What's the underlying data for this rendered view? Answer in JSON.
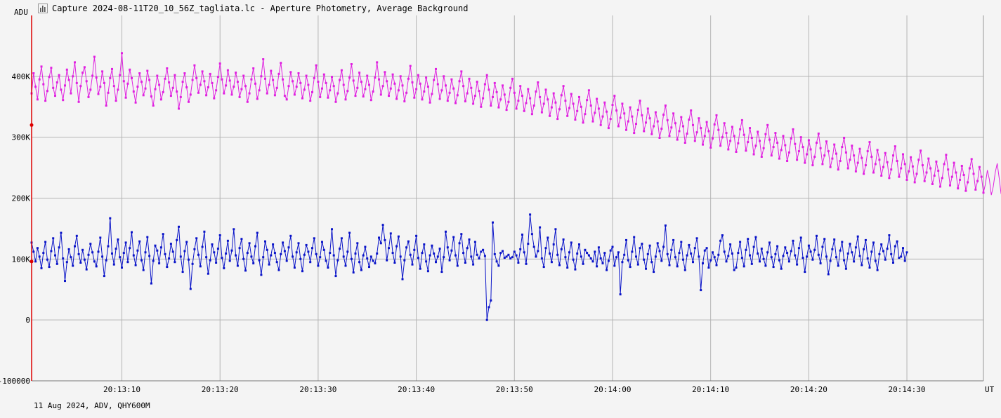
{
  "window": {
    "title": "Capture 2024-08-11T20_10_56Z_tagliata.lc - Aperture Photometry, Average Background",
    "icon": "lightcurve-app-icon"
  },
  "footer": {
    "text": "11 Aug 2024, ADV, QHY600M"
  },
  "colors": {
    "background": "#f4f4f4",
    "grid": "#b4b4b4",
    "axis": "#777777",
    "cursor": "#dd0000",
    "series1": "#e020e0",
    "series2": "#0a14c8"
  },
  "chart_data": {
    "type": "line",
    "title": "",
    "xlabel": "UT",
    "ylabel": "ADU",
    "x_range": [
      "20:13:00.8",
      "20:14:37.8"
    ],
    "ylim": [
      -100000,
      500000
    ],
    "y_ticks": [
      {
        "value": -100000,
        "label": "-100000"
      },
      {
        "value": 0,
        "label": "0"
      },
      {
        "value": 100000,
        "label": "100K"
      },
      {
        "value": 200000,
        "label": "200K"
      },
      {
        "value": 300000,
        "label": "300K"
      },
      {
        "value": 400000,
        "label": "400K"
      }
    ],
    "x_ticks": [
      {
        "value": "20:13:10",
        "label": "20:13:10"
      },
      {
        "value": "20:13:20",
        "label": "20:13:20"
      },
      {
        "value": "20:13:30",
        "label": "20:13:30"
      },
      {
        "value": "20:13:40",
        "label": "20:13:40"
      },
      {
        "value": "20:13:50",
        "label": "20:13:50"
      },
      {
        "value": "20:14:00",
        "label": "20:14:00"
      },
      {
        "value": "20:14:10",
        "label": "20:14:10"
      },
      {
        "value": "20:14:20",
        "label": "20:14:20"
      },
      {
        "value": "20:14:30",
        "label": "20:14:30"
      }
    ],
    "grid": true,
    "cursor": {
      "time": "20:13:00.8",
      "series1_value": 320000,
      "series2_value": 96000
    },
    "time_step_s": 0.2,
    "series": [
      {
        "color": "#e020e0",
        "values": [
          372000,
          405000,
          383000,
          362000,
          395000,
          416000,
          387000,
          360000,
          376000,
          399000,
          414000,
          381000,
          368000,
          390000,
          402000,
          378000,
          361000,
          385000,
          411000,
          394000,
          372000,
          400000,
          423000,
          389000,
          358000,
          384000,
          406000,
          415000,
          392000,
          366000,
          378000,
          401000,
          432000,
          398000,
          371000,
          383000,
          408000,
          389000,
          352000,
          373000,
          397000,
          412000,
          384000,
          360000,
          378000,
          402000,
          438000,
          392000,
          365000,
          388000,
          411000,
          397000,
          375000,
          357000,
          383000,
          405000,
          391000,
          369000,
          380000,
          409000,
          394000,
          367000,
          352000,
          379000,
          401000,
          386000,
          362000,
          374000,
          396000,
          413000,
          390000,
          368000,
          381000,
          402000,
          375000,
          347000,
          366000,
          391000,
          405000,
          382000,
          358000,
          370000,
          394000,
          418000,
          397000,
          373000,
          386000,
          408000,
          392000,
          369000,
          382000,
          404000,
          389000,
          364000,
          377000,
          399000,
          421000,
          395000,
          372000,
          385000,
          410000,
          393000,
          370000,
          383000,
          406000,
          391000,
          366000,
          379000,
          401000,
          384000,
          358000,
          372000,
          395000,
          413000,
          388000,
          363000,
          377000,
          400000,
          428000,
          396000,
          372000,
          386000,
          409000,
          394000,
          369000,
          381000,
          404000,
          422000,
          395000,
          368000,
          362000,
          384000,
          407000,
          392000,
          370000,
          383000,
          405000,
          389000,
          364000,
          378000,
          401000,
          386000,
          360000,
          374000,
          397000,
          418000,
          391000,
          366000,
          380000,
          403000,
          389000,
          365000,
          377000,
          399000,
          384000,
          358000,
          372000,
          394000,
          410000,
          386000,
          362000,
          376000,
          398000,
          420000,
          393000,
          368000,
          381000,
          406000,
          391000,
          367000,
          379000,
          401000,
          386000,
          361000,
          375000,
          398000,
          423000,
          395000,
          370000,
          384000,
          407000,
          392000,
          368000,
          380000,
          403000,
          388000,
          363000,
          377000,
          400000,
          385000,
          359000,
          373000,
          396000,
          417000,
          390000,
          365000,
          379000,
          402000,
          388000,
          362000,
          375000,
          398000,
          383000,
          357000,
          371000,
          394000,
          412000,
          387000,
          363000,
          377000,
          400000,
          385000,
          360000,
          373000,
          395000,
          380000,
          356000,
          369000,
          392000,
          408000,
          384000,
          359000,
          372000,
          396000,
          381000,
          355000,
          368000,
          391000,
          376000,
          350000,
          364000,
          387000,
          402000,
          378000,
          352000,
          366000,
          389000,
          374000,
          349000,
          362000,
          385000,
          370000,
          345000,
          358000,
          381000,
          396000,
          373000,
          347000,
          360000,
          384000,
          368000,
          343000,
          356000,
          379000,
          364000,
          338000,
          352000,
          375000,
          390000,
          366000,
          341000,
          355000,
          378000,
          362000,
          335000,
          349000,
          372000,
          357000,
          330000,
          346000,
          369000,
          384000,
          360000,
          335000,
          348000,
          371000,
          355000,
          329000,
          343000,
          366000,
          350000,
          324000,
          338000,
          361000,
          377000,
          352000,
          326000,
          340000,
          363000,
          347000,
          320000,
          334000,
          357000,
          342000,
          315000,
          330000,
          353000,
          368000,
          344000,
          318000,
          332000,
          355000,
          339000,
          312000,
          326000,
          349000,
          334000,
          307000,
          322000,
          345000,
          360000,
          336000,
          310000,
          324000,
          347000,
          331000,
          305000,
          318000,
          341000,
          326000,
          299000,
          314000,
          337000,
          352000,
          328000,
          302000,
          316000,
          339000,
          323000,
          296000,
          310000,
          333000,
          318000,
          291000,
          306000,
          329000,
          344000,
          320000,
          294000,
          308000,
          331000,
          315000,
          288000,
          302000,
          325000,
          310000,
          283000,
          298000,
          321000,
          336000,
          312000,
          286000,
          300000,
          323000,
          307000,
          280000,
          294000,
          317000,
          302000,
          276000,
          290000,
          313000,
          328000,
          304000,
          278000,
          292000,
          315000,
          299000,
          272000,
          286000,
          309000,
          294000,
          268000,
          282000,
          305000,
          320000,
          296000,
          270000,
          284000,
          307000,
          291000,
          265000,
          279000,
          302000,
          287000,
          261000,
          275000,
          298000,
          313000,
          289000,
          263000,
          277000,
          300000,
          284000,
          258000,
          272000,
          295000,
          280000,
          254000,
          268000,
          291000,
          306000,
          282000,
          256000,
          270000,
          293000,
          277000,
          251000,
          265000,
          288000,
          273000,
          247000,
          261000,
          284000,
          299000,
          275000,
          249000,
          263000,
          286000,
          270000,
          244000,
          258000,
          281000,
          266000,
          240000,
          254000,
          277000,
          292000,
          268000,
          242000,
          256000,
          279000,
          263000,
          237000,
          251000,
          274000,
          259000,
          233000,
          247000,
          270000,
          285000,
          261000,
          235000,
          249000,
          272000,
          256000,
          230000,
          244000,
          267000,
          252000,
          226000,
          240000,
          263000,
          278000,
          254000,
          228000,
          242000,
          265000,
          249000,
          223000,
          237000,
          260000,
          245000,
          219000,
          233000,
          256000,
          271000,
          247000,
          221000,
          235000,
          258000,
          242000,
          216000,
          230000,
          253000,
          238000,
          212000,
          226000,
          249000,
          264000,
          240000,
          214000,
          228000,
          251000,
          235000,
          209000,
          223000,
          246000,
          231000,
          205000,
          219000,
          242000,
          257000,
          233000,
          207000,
          221000,
          244000,
          228000,
          202000,
          216000,
          239000,
          224000,
          198000,
          212000,
          235000
        ]
      },
      {
        "color": "#0a14c8",
        "values": [
          127000,
          112000,
          96000,
          118000,
          104000,
          85000,
          110000,
          128000,
          99000,
          87000,
          113000,
          134000,
          106000,
          92000,
          119000,
          143000,
          101000,
          64000,
          95000,
          116000,
          103000,
          89000,
          121000,
          138000,
          108000,
          94000,
          115000,
          99000,
          83000,
          107000,
          125000,
          111000,
          96000,
          88000,
          112000,
          135000,
          104000,
          72000,
          98000,
          121000,
          167000,
          109000,
          91000,
          117000,
          132000,
          103000,
          86000,
          110000,
          127000,
          95000,
          118000,
          144000,
          106000,
          90000,
          114000,
          129000,
          98000,
          82000,
          111000,
          136000,
          105000,
          60000,
          97000,
          122000,
          114000,
          93000,
          119000,
          141000,
          108000,
          87000,
          101000,
          125000,
          112000,
          95000,
          131000,
          153000,
          104000,
          79000,
          113000,
          128000,
          99000,
          51000,
          92000,
          116000,
          134000,
          107000,
          88000,
          120000,
          145000,
          103000,
          76000,
          98000,
          124000,
          111000,
          94000,
          117000,
          139000,
          102000,
          85000,
          109000,
          130000,
          97000,
          114000,
          149000,
          106000,
          89000,
          118000,
          133000,
          100000,
          81000,
          110000,
          126000,
          104000,
          93000,
          121000,
          143000,
          98000,
          74000,
          103000,
          129000,
          115000,
          91000,
          106000,
          124000,
          110000,
          95000,
          82000,
          108000,
          127000,
          113000,
          97000,
          119000,
          138000,
          104000,
          86000,
          111000,
          126000,
          100000,
          80000,
          107000,
          123000,
          112000,
          95000,
          118000,
          134000,
          108000,
          89000,
          103000,
          128000,
          115000,
          97000,
          86000,
          110000,
          149000,
          106000,
          72000,
          98000,
          117000,
          134000,
          104000,
          89000,
          112000,
          143000,
          100000,
          78000,
          109000,
          126000,
          95000,
          82000,
          106000,
          120000,
          101000,
          87000,
          104000,
          97000,
          93000,
          109000,
          135000,
          126000,
          156000,
          131000,
          98000,
          118000,
          142000,
          110000,
          94000,
          121000,
          137000,
          104000,
          67000,
          98000,
          119000,
          129000,
          107000,
          91000,
          115000,
          138000,
          102000,
          84000,
          110000,
          124000,
          96000,
          80000,
          106000,
          122000,
          109000,
          95000,
          104000,
          117000,
          79000,
          103000,
          145000,
          119000,
          98000,
          114000,
          136000,
          106000,
          89000,
          126000,
          141000,
          110000,
          94000,
          118000,
          132000,
          104000,
          91000,
          128000,
          107000,
          101000,
          112000,
          115000,
          105000,
          0,
          21000,
          32000,
          160000,
          108000,
          96000,
          89000,
          110000,
          113000,
          102000,
          104000,
          107000,
          101000,
          103000,
          112000,
          106000,
          94000,
          116000,
          140000,
          111000,
          92000,
          125000,
          173000,
          141000,
          120000,
          104000,
          113000,
          152000,
          101000,
          87000,
          118000,
          135000,
          109000,
          95000,
          124000,
          149000,
          107000,
          90000,
          116000,
          132000,
          103000,
          86000,
          111000,
          127000,
          99000,
          83000,
          109000,
          124000,
          104000,
          92000,
          115000,
          110000,
          106000,
          101000,
          96000,
          112000,
          88000,
          119000,
          101000,
          93000,
          110000,
          82000,
          97000,
          114000,
          120000,
          89000,
          103000,
          111000,
          42000,
          95000,
          107000,
          131000,
          98000,
          87000,
          112000,
          136000,
          104000,
          91000,
          118000,
          125000,
          99000,
          84000,
          108000,
          122000,
          95000,
          79000,
          104000,
          126000,
          113000,
          97000,
          120000,
          155000,
          108000,
          90000,
          115000,
          131000,
          103000,
          88000,
          110000,
          128000,
          99000,
          82000,
          106000,
          123000,
          109000,
          95000,
          118000,
          134000,
          104000,
          49000,
          93000,
          114000,
          118000,
          86000,
          98000,
          111000,
          103000,
          90000,
          107000,
          130000,
          139000,
          112000,
          96000,
          105000,
          124000,
          109000,
          82000,
          86000,
          110000,
          128000,
          102000,
          88000,
          115000,
          133000,
          106000,
          92000,
          120000,
          136000,
          109000,
          96000,
          117000,
          100000,
          89000,
          111000,
          127000,
          103000,
          87000,
          108000,
          121000,
          98000,
          84000,
          105000,
          119000,
          110000,
          96000,
          113000,
          130000,
          106000,
          91000,
          118000,
          135000,
          102000,
          79000,
          104000,
          122000,
          112000,
          99000,
          115000,
          138000,
          107000,
          93000,
          120000,
          133000,
          104000,
          75000,
          97000,
          116000,
          132000,
          103000,
          89000,
          114000,
          128000,
          98000,
          84000,
          109000,
          125000,
          111000,
          96000,
          119000,
          137000,
          105000,
          90000,
          116000,
          131000,
          101000,
          86000,
          112000,
          127000,
          97000,
          82000,
          108000,
          124000,
          113000,
          99000,
          117000,
          139000,
          108000,
          94000,
          121000,
          129000,
          102000,
          104000,
          118000,
          97000,
          111000
        ]
      }
    ]
  }
}
